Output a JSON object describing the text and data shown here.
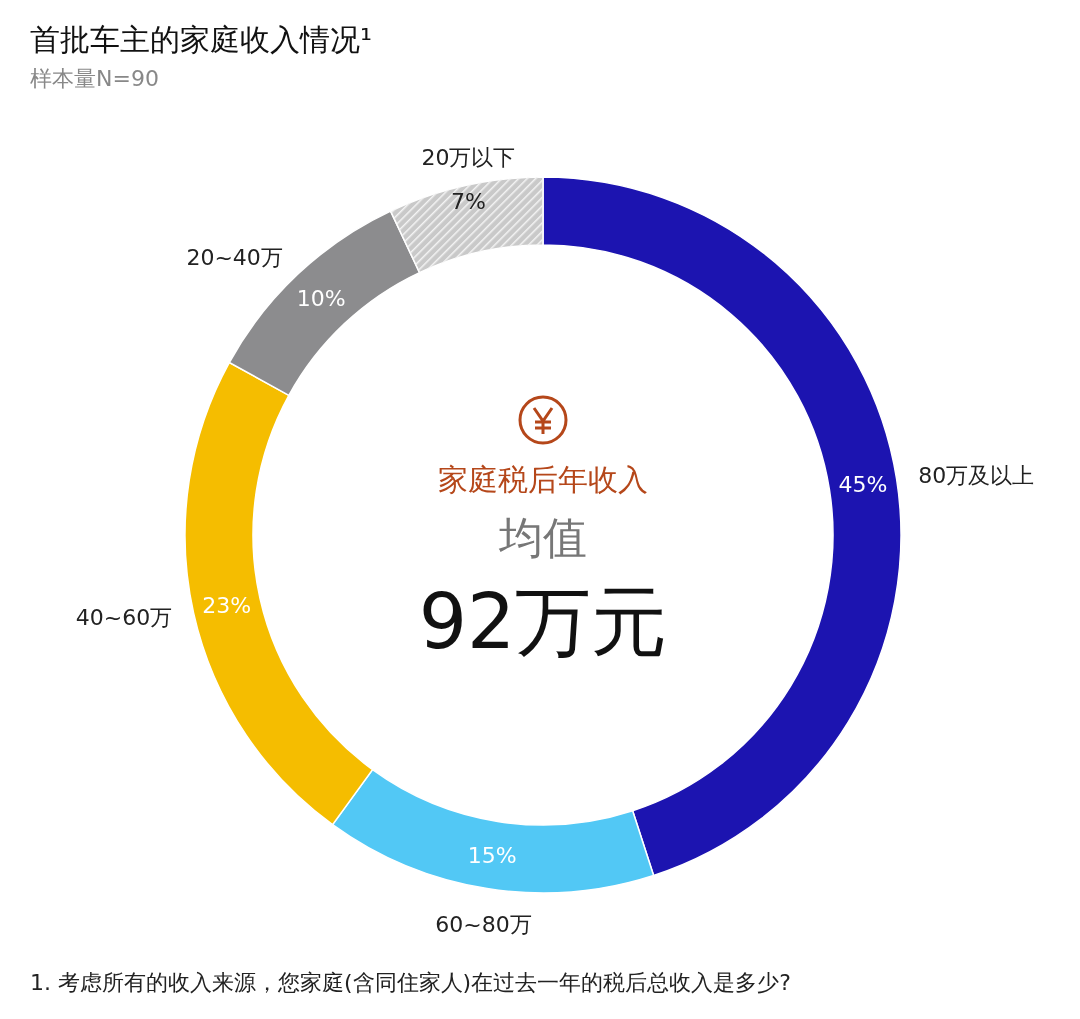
{
  "chart_data": {
    "type": "donut",
    "title": "首批车主的家庭收入情况¹",
    "subtitle": "样本量N=90",
    "categories": [
      "80万及以上",
      "60~80万",
      "40~60万",
      "20~40万",
      "20万以下"
    ],
    "values": [
      45,
      15,
      23,
      10,
      7
    ],
    "colors": [
      "#1c14b0",
      "#52c8f5",
      "#f5bd00",
      "#8c8c8e",
      "#c9c9c9"
    ],
    "value_labels": [
      "45%",
      "15%",
      "23%",
      "10%",
      "7%"
    ],
    "annotations": [
      "家庭税后年收入",
      "均值",
      "92万元",
      "1.   考虑所有的收入来源，您家庭(含同住家人)在过去一年的税后总收入是多少?"
    ]
  }
}
